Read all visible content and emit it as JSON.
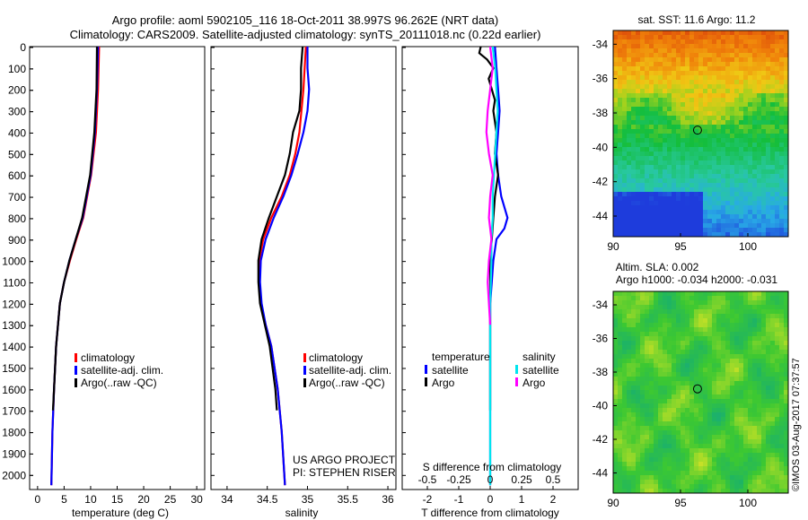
{
  "header": {
    "title_line1": "Argo profile: aoml 5902105_116 18-Oct-2011 38.997S 96.262E (NRT data)",
    "title_line2": "Climatology: CARS2009. Satellite-adjusted climatology: synTS_20111018.nc (0.22d earlier)"
  },
  "colors": {
    "climatology": "#ff0000",
    "satellite": "#0000ff",
    "argo": "#000000",
    "satellite_salinity": "#00e5ee",
    "argo_salinity": "#ff00ff"
  },
  "chart_data": [
    {
      "id": "temperature",
      "type": "line",
      "xlabel": "temperature (deg C)",
      "xlim": [
        -1.5,
        31.5
      ],
      "xticks": [
        0,
        5,
        10,
        15,
        20,
        25,
        30
      ],
      "ylim": [
        2070,
        0
      ],
      "yticks": [
        0,
        100,
        200,
        300,
        400,
        500,
        600,
        700,
        800,
        900,
        1000,
        1100,
        1200,
        1300,
        1400,
        1500,
        1600,
        1700,
        1800,
        1900,
        2000
      ],
      "legend": [
        "climatology",
        "satellite-adj. clim.",
        "Argo(..raw -QC)"
      ],
      "series": [
        {
          "name": "climatology",
          "color": "#ff0000",
          "depth": [
            0,
            200,
            400,
            600,
            800,
            900,
            1000,
            1100,
            1200,
            1400,
            1600,
            1800,
            2050
          ],
          "values": [
            11.6,
            11.4,
            11.0,
            10.1,
            8.6,
            7.3,
            6.1,
            5.0,
            4.2,
            3.5,
            3.1,
            2.8,
            2.6
          ]
        },
        {
          "name": "satellite-adj. clim.",
          "color": "#0000ff",
          "depth": [
            0,
            200,
            400,
            600,
            800,
            900,
            1000,
            1100,
            1200,
            1400,
            1600,
            1800,
            2050
          ],
          "values": [
            11.4,
            11.2,
            10.8,
            10.0,
            8.5,
            7.2,
            6.0,
            5.0,
            4.2,
            3.5,
            3.1,
            2.8,
            2.6
          ]
        },
        {
          "name": "Argo(..raw -QC)",
          "color": "#000000",
          "depth": [
            0,
            200,
            400,
            600,
            800,
            900,
            1000,
            1100,
            1200,
            1400,
            1600,
            1700
          ],
          "values": [
            11.2,
            11.1,
            10.7,
            9.9,
            8.4,
            7.2,
            6.0,
            5.0,
            4.2,
            3.5,
            3.1,
            2.9
          ]
        }
      ]
    },
    {
      "id": "salinity",
      "type": "line",
      "xlabel": "salinity",
      "xlim": [
        33.8,
        36.1
      ],
      "xticks": [
        34,
        34.5,
        35,
        35.5,
        36
      ],
      "ylim": [
        2070,
        0
      ],
      "legend": [
        "climatology",
        "satellite-adj. clim.",
        "Argo(..raw -QC)"
      ],
      "annotation": [
        "US ARGO PROJECT",
        "PI: STEPHEN RISER"
      ],
      "series": [
        {
          "name": "climatology",
          "color": "#ff0000",
          "depth": [
            0,
            200,
            400,
            500,
            600,
            700,
            800,
            900,
            1000,
            1100,
            1200,
            1300,
            1400,
            1600,
            1800,
            2050
          ],
          "values": [
            34.98,
            34.95,
            34.9,
            34.85,
            34.78,
            34.68,
            34.55,
            34.45,
            34.4,
            34.4,
            34.42,
            34.48,
            34.55,
            34.63,
            34.68,
            34.72
          ]
        },
        {
          "name": "satellite-adj. clim.",
          "color": "#0000ff",
          "depth": [
            0,
            100,
            200,
            300,
            400,
            500,
            600,
            700,
            800,
            900,
            1000,
            1100,
            1200,
            1300,
            1400,
            1600,
            1800,
            2050
          ],
          "values": [
            35.0,
            35.0,
            35.02,
            35.0,
            34.95,
            34.88,
            34.8,
            34.7,
            34.58,
            34.48,
            34.42,
            34.41,
            34.43,
            34.48,
            34.55,
            34.63,
            34.68,
            34.72
          ]
        },
        {
          "name": "Argo(..raw -QC)",
          "color": "#000000",
          "depth": [
            0,
            100,
            200,
            300,
            400,
            500,
            600,
            700,
            800,
            900,
            1000,
            1100,
            1200,
            1300,
            1400,
            1600,
            1700
          ],
          "values": [
            34.94,
            34.92,
            34.92,
            34.9,
            34.82,
            34.78,
            34.72,
            34.62,
            34.52,
            34.43,
            34.39,
            34.39,
            34.41,
            34.47,
            34.53,
            34.6,
            34.62
          ]
        }
      ]
    },
    {
      "id": "difference",
      "type": "line",
      "xlabel": "T difference from climatology",
      "xlabel_top": "S difference from climatology",
      "xlim": [
        -2.8,
        2.8
      ],
      "xticks": [
        -2,
        -1,
        0,
        1,
        2
      ],
      "xticks_top": [
        "-0.5",
        "-0.25",
        "0",
        "0.25",
        "0.5"
      ],
      "xticks_top_values": [
        -0.5,
        -0.25,
        0,
        0.25,
        0.5
      ],
      "s_scale": 4,
      "ylim": [
        2070,
        0
      ],
      "legend_temperature": [
        "temperature",
        "satellite",
        "Argo"
      ],
      "legend_salinity": [
        "salinity",
        "satellite",
        "Argo"
      ],
      "series": [
        {
          "name": "temperature satellite",
          "color": "#0000ff",
          "depth": [
            0,
            100,
            200,
            300,
            400,
            500,
            600,
            700,
            800,
            850,
            900,
            1000,
            1100,
            1200,
            1300,
            1500,
            1700,
            1900,
            2050
          ],
          "values": [
            0.15,
            0.2,
            0.25,
            0.3,
            0.25,
            0.2,
            0.25,
            0.35,
            0.55,
            0.45,
            0.2,
            0.1,
            0.05,
            0.0,
            0.0,
            0.0,
            0.0,
            0.0,
            0.0
          ]
        },
        {
          "name": "temperature Argo",
          "color": "#000000",
          "depth": [
            0,
            30,
            60,
            100,
            150,
            200,
            250,
            300,
            400,
            500,
            600,
            700,
            800,
            900,
            1000,
            1100,
            1200,
            1300,
            1500,
            1700
          ],
          "values": [
            -0.3,
            -0.35,
            -0.1,
            0.1,
            -0.05,
            0.05,
            0.15,
            0.1,
            0.2,
            0.15,
            0.25,
            0.15,
            0.1,
            0.05,
            0.0,
            0.0,
            0.0,
            0.0,
            0.0,
            0.0
          ]
        },
        {
          "name": "salinity satellite",
          "color": "#00e5ee",
          "depth": [
            0,
            100,
            200,
            300,
            400,
            500,
            600,
            700,
            800,
            900,
            1000,
            1200,
            1400,
            1600,
            1800,
            2050
          ],
          "values": [
            0.02,
            0.04,
            0.05,
            0.06,
            0.05,
            0.04,
            0.03,
            0.02,
            0.02,
            0.01,
            0.01,
            0.0,
            0.0,
            0.0,
            0.0,
            0.0
          ]
        },
        {
          "name": "salinity Argo",
          "color": "#ff00ff",
          "depth": [
            0,
            100,
            200,
            300,
            400,
            500,
            600,
            700,
            800,
            900,
            1000,
            1100,
            1200,
            1300
          ],
          "values": [
            0.0,
            0.02,
            0.0,
            -0.02,
            -0.03,
            -0.01,
            0.02,
            0.0,
            -0.01,
            0.01,
            -0.01,
            -0.02,
            -0.01,
            0.0
          ]
        }
      ]
    },
    {
      "id": "sst_map",
      "type": "heatmap",
      "title": "sat. SST: 11.6 Argo: 11.2",
      "xlim": [
        90,
        103
      ],
      "ylim": [
        -45.2,
        -33.2
      ],
      "xticks": [
        90,
        95,
        100
      ],
      "yticks": [
        -34,
        -36,
        -38,
        -40,
        -42,
        -44
      ],
      "marker": {
        "lon": 96.262,
        "lat": -38.997
      }
    },
    {
      "id": "sla_map",
      "type": "heatmap",
      "title_line1": "Altim. SLA: 0.002",
      "title_line2": "Argo h1000: -0.034 h2000: -0.031",
      "xlim": [
        90,
        103
      ],
      "ylim": [
        -45.2,
        -33.2
      ],
      "xticks": [
        90,
        95,
        100
      ],
      "yticks": [
        -34,
        -36,
        -38,
        -40,
        -42,
        -44
      ],
      "marker": {
        "lon": 96.262,
        "lat": -38.997
      }
    }
  ],
  "footer": {
    "credit": "©IMOS 03-Aug-2017 07:37:57"
  }
}
